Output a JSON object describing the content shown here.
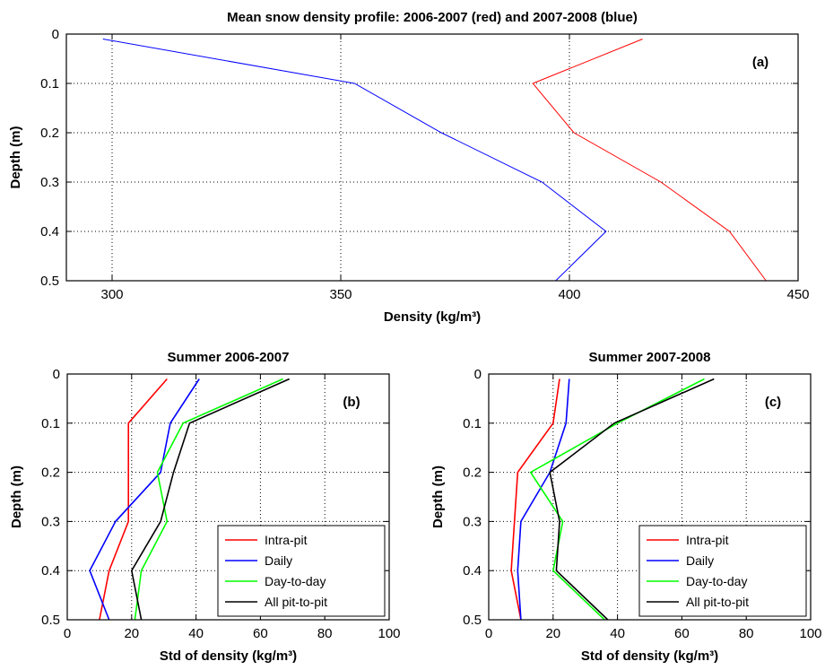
{
  "chart_data": [
    {
      "type": "line",
      "title": "Mean snow density profile: 2006-2007 (red) and 2007-2008 (blue)",
      "panel_label": "(a)",
      "xlabel": "Density (kg/m³)",
      "ylabel": "Depth (m)",
      "xlim": [
        290,
        450
      ],
      "ylim": [
        0,
        0.5
      ],
      "y_reversed": true,
      "grid": true,
      "xticks": [
        300,
        350,
        400,
        450
      ],
      "yticks": [
        0,
        0.1,
        0.2,
        0.3,
        0.4,
        0.5
      ],
      "xtick_labels": [
        "300",
        "350",
        "400",
        "450"
      ],
      "ytick_labels": [
        "0",
        "0.1",
        "0.2",
        "0.3",
        "0.4",
        "0.5"
      ],
      "series": [
        {
          "color": "#ff0000",
          "x": [
            416,
            392,
            401,
            420,
            435,
            443
          ],
          "y": [
            0.01,
            0.1,
            0.2,
            0.3,
            0.4,
            0.5
          ]
        },
        {
          "color": "#0000ff",
          "x": [
            298,
            353,
            372,
            394,
            408,
            397
          ],
          "y": [
            0.01,
            0.1,
            0.2,
            0.3,
            0.4,
            0.5
          ]
        }
      ]
    },
    {
      "type": "line",
      "title": "Summer 2006-2007",
      "panel_label": "(b)",
      "xlabel": "Std of density (kg/m³)",
      "ylabel": "Depth (m)",
      "xlim": [
        0,
        100
      ],
      "ylim": [
        0,
        0.5
      ],
      "y_reversed": true,
      "grid": true,
      "xticks": [
        0,
        20,
        40,
        60,
        80,
        100
      ],
      "yticks": [
        0,
        0.1,
        0.2,
        0.3,
        0.4,
        0.5
      ],
      "xtick_labels": [
        "0",
        "20",
        "40",
        "60",
        "80",
        "100"
      ],
      "ytick_labels": [
        "0",
        "0.1",
        "0.2",
        "0.3",
        "0.4",
        "0.5"
      ],
      "legend_position": "bottom-right",
      "series": [
        {
          "name": "Intra-pit",
          "color": "#ff0000",
          "x": [
            31,
            19,
            19,
            19,
            13,
            10
          ],
          "y": [
            0.01,
            0.1,
            0.2,
            0.3,
            0.4,
            0.5
          ]
        },
        {
          "name": "Daily",
          "color": "#0000ff",
          "x": [
            41,
            32,
            29,
            15,
            7,
            13
          ],
          "y": [
            0.01,
            0.1,
            0.2,
            0.3,
            0.4,
            0.5
          ]
        },
        {
          "name": "Day-to-day",
          "color": "#00ff00",
          "x": [
            67,
            36,
            28,
            31,
            23,
            21
          ],
          "y": [
            0.01,
            0.1,
            0.2,
            0.3,
            0.4,
            0.5
          ]
        },
        {
          "name": "All pit-to-pit",
          "color": "#000000",
          "x": [
            69,
            38,
            33,
            29,
            20,
            23
          ],
          "y": [
            0.01,
            0.1,
            0.2,
            0.3,
            0.4,
            0.5
          ]
        }
      ]
    },
    {
      "type": "line",
      "title": "Summer 2007-2008",
      "panel_label": "(c)",
      "xlabel": "Std of density (kg/m³)",
      "ylabel": "Depth (m)",
      "xlim": [
        0,
        100
      ],
      "ylim": [
        0,
        0.5
      ],
      "y_reversed": true,
      "grid": true,
      "xticks": [
        0,
        20,
        40,
        60,
        80,
        100
      ],
      "yticks": [
        0,
        0.1,
        0.2,
        0.3,
        0.4,
        0.5
      ],
      "xtick_labels": [
        "0",
        "20",
        "40",
        "60",
        "80",
        "100"
      ],
      "ytick_labels": [
        "0",
        "0.1",
        "0.2",
        "0.3",
        "0.4",
        "0.5"
      ],
      "legend_position": "bottom-right",
      "series": [
        {
          "name": "Intra-pit",
          "color": "#ff0000",
          "x": [
            22,
            20,
            9,
            8,
            7,
            10
          ],
          "y": [
            0.01,
            0.1,
            0.2,
            0.3,
            0.4,
            0.5
          ]
        },
        {
          "name": "Daily",
          "color": "#0000ff",
          "x": [
            25,
            24,
            19,
            10,
            9,
            10
          ],
          "y": [
            0.01,
            0.1,
            0.2,
            0.3,
            0.4,
            0.5
          ]
        },
        {
          "name": "Day-to-day",
          "color": "#00ff00",
          "x": [
            67,
            40,
            13,
            23,
            20,
            36
          ],
          "y": [
            0.01,
            0.1,
            0.2,
            0.3,
            0.4,
            0.5
          ]
        },
        {
          "name": "All pit-to-pit",
          "color": "#000000",
          "x": [
            70,
            39,
            19,
            22,
            21,
            37
          ],
          "y": [
            0.01,
            0.1,
            0.2,
            0.3,
            0.4,
            0.5
          ]
        }
      ]
    }
  ]
}
